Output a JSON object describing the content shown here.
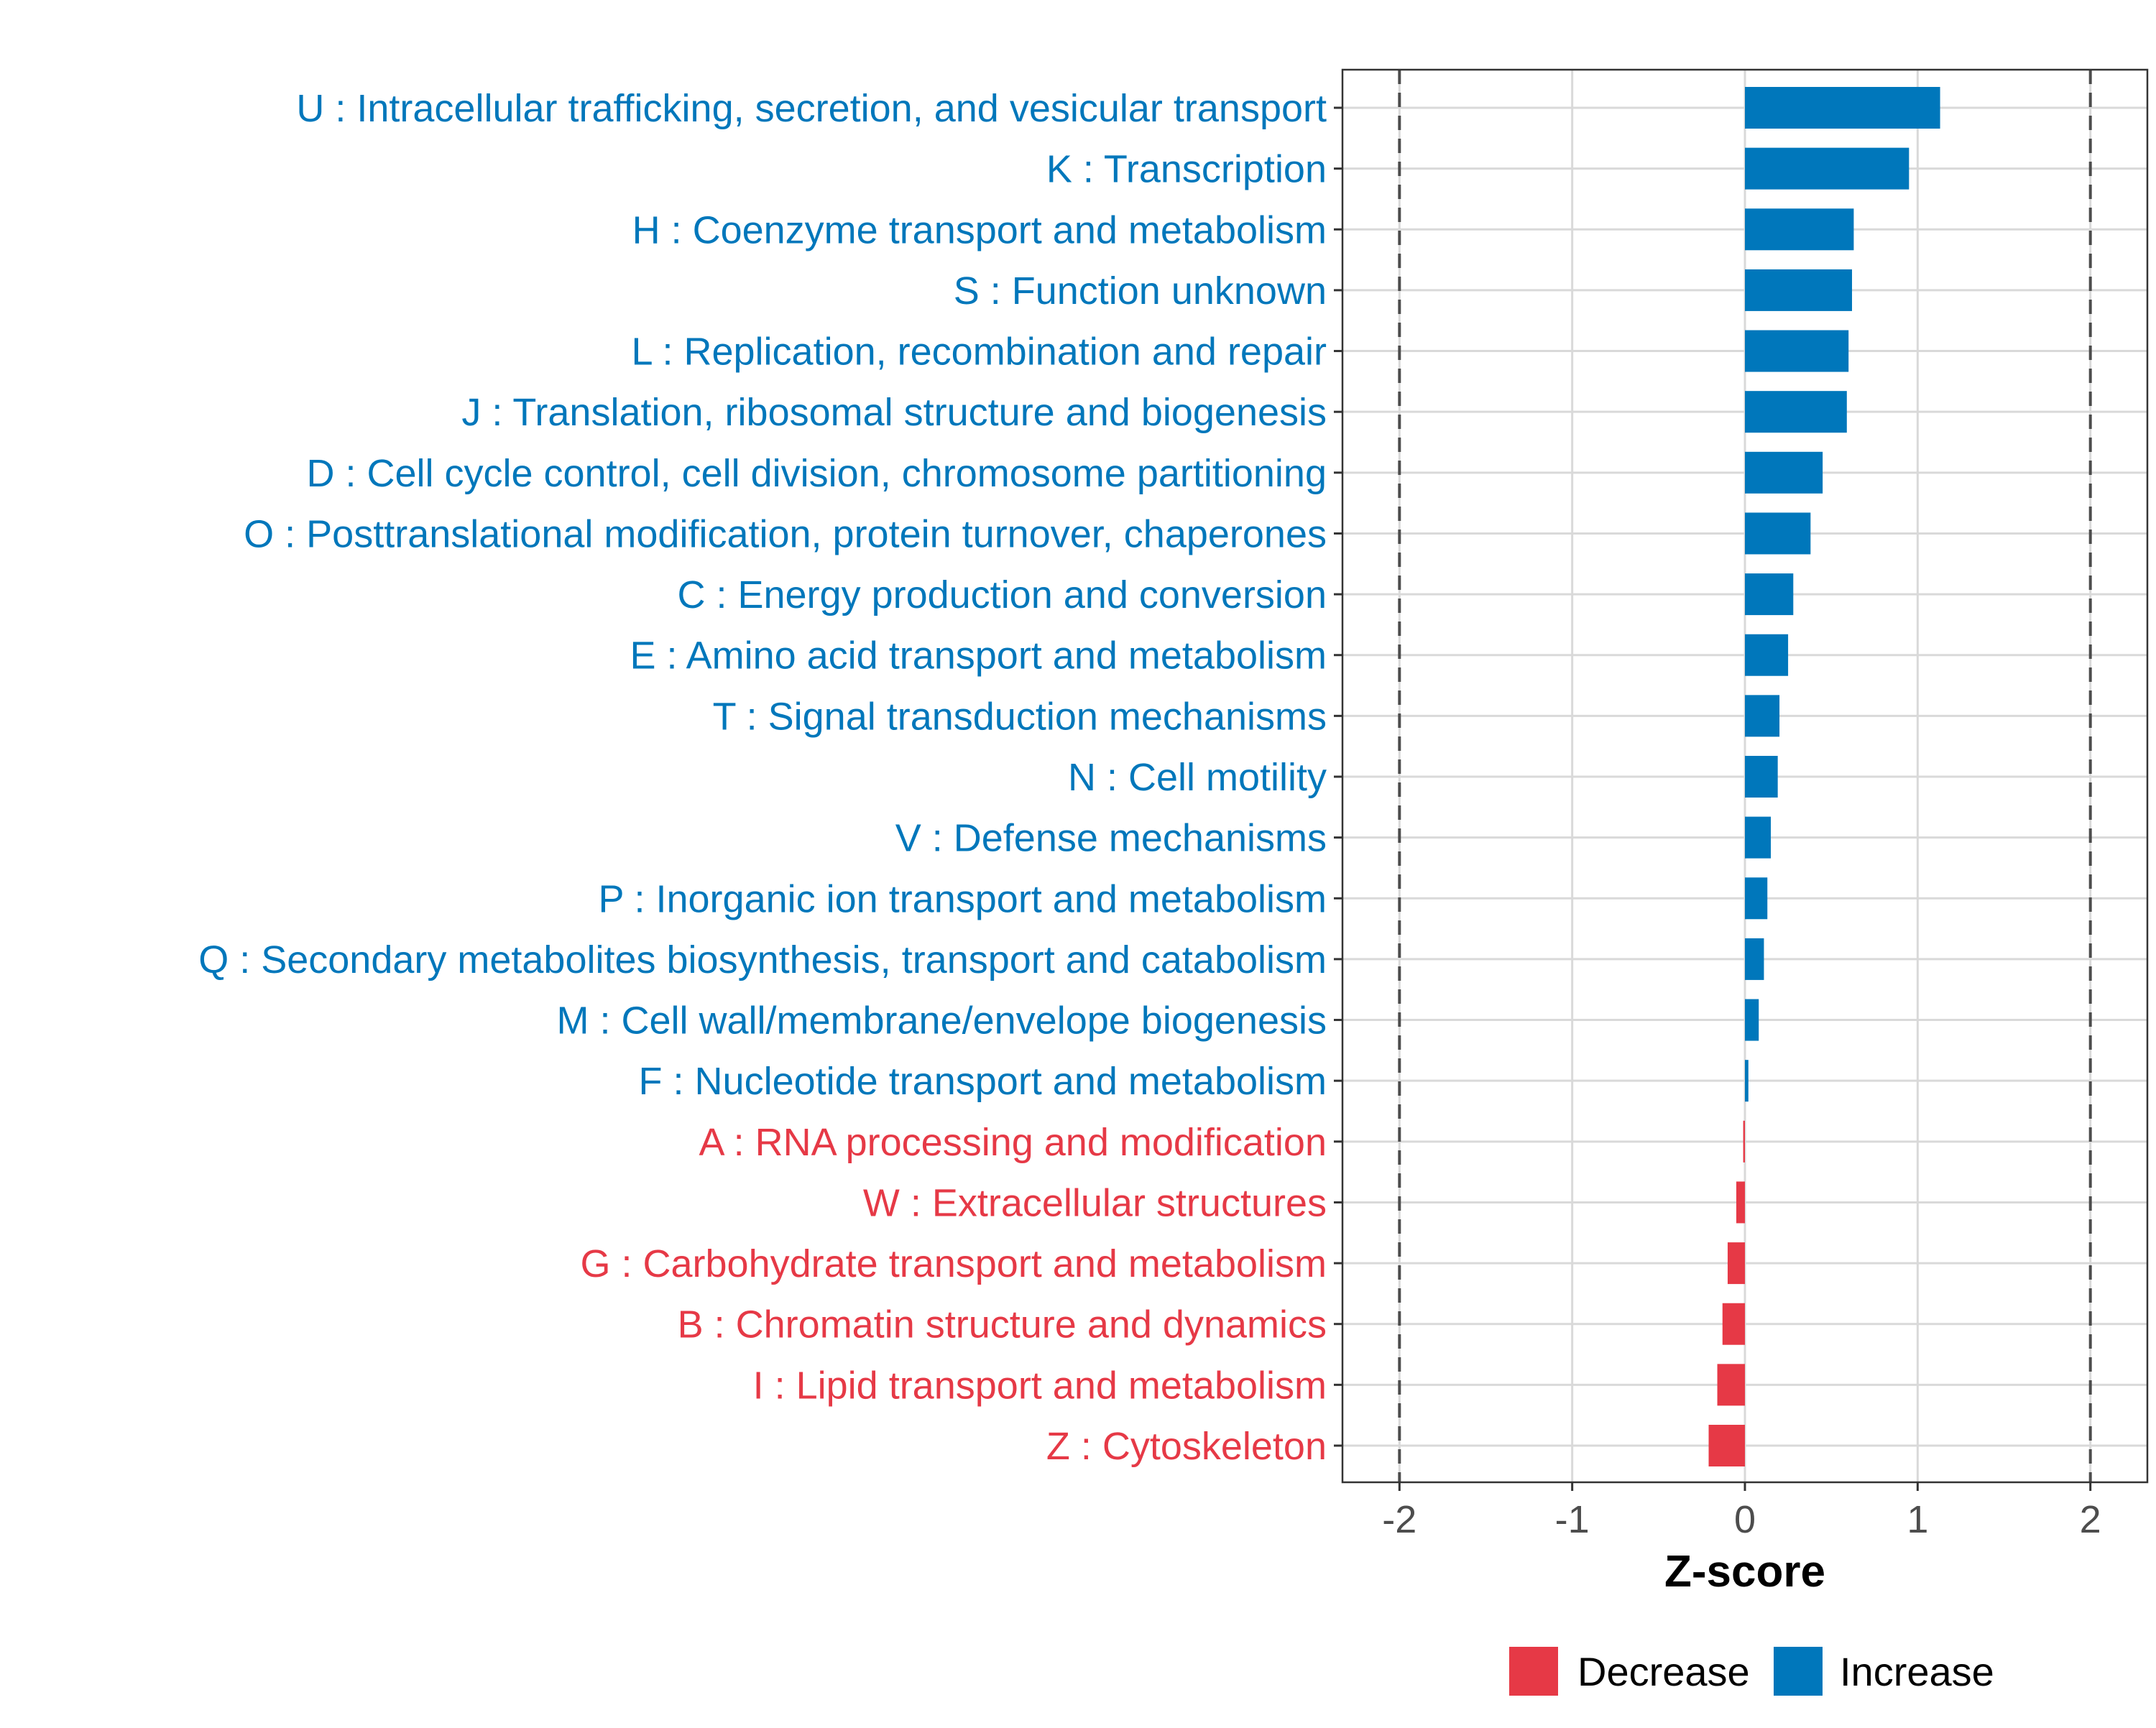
{
  "colors": {
    "increase": "#0077BB",
    "decrease": "#E63946",
    "grid": "#D9D9D9",
    "axis_text": "#4D4D4D",
    "panel_border": "#333333",
    "threshold_line": "#4D4D4D"
  },
  "chart_data": {
    "type": "bar",
    "orientation": "horizontal",
    "xlabel": "Z-score",
    "ylabel": "",
    "xlim": [
      -2.33,
      2.33
    ],
    "x_ticks": [
      -2,
      -1,
      0,
      1,
      2
    ],
    "x_tick_labels": [
      "-2",
      "-1",
      "0",
      "1",
      "2"
    ],
    "threshold_lines": [
      -2,
      2
    ],
    "grid": true,
    "legend": {
      "placement": "bottom",
      "items": [
        {
          "key": "decrease",
          "label": "Decrease"
        },
        {
          "key": "increase",
          "label": "Increase"
        }
      ]
    },
    "bars": [
      {
        "label": "U : Intracellular trafficking, secretion, and vesicular transport",
        "value": 1.13,
        "group": "increase"
      },
      {
        "label": "K : Transcription",
        "value": 0.95,
        "group": "increase"
      },
      {
        "label": "H : Coenzyme transport and metabolism",
        "value": 0.63,
        "group": "increase"
      },
      {
        "label": "S : Function unknown",
        "value": 0.62,
        "group": "increase"
      },
      {
        "label": "L : Replication, recombination and repair",
        "value": 0.6,
        "group": "increase"
      },
      {
        "label": "J : Translation, ribosomal structure and biogenesis",
        "value": 0.59,
        "group": "increase"
      },
      {
        "label": "D : Cell cycle control, cell division, chromosome partitioning",
        "value": 0.45,
        "group": "increase"
      },
      {
        "label": "O : Posttranslational modification, protein turnover, chaperones",
        "value": 0.38,
        "group": "increase"
      },
      {
        "label": "C : Energy production and conversion",
        "value": 0.28,
        "group": "increase"
      },
      {
        "label": "E : Amino acid transport and metabolism",
        "value": 0.25,
        "group": "increase"
      },
      {
        "label": "T : Signal transduction mechanisms",
        "value": 0.2,
        "group": "increase"
      },
      {
        "label": "N : Cell motility",
        "value": 0.19,
        "group": "increase"
      },
      {
        "label": "V : Defense mechanisms",
        "value": 0.15,
        "group": "increase"
      },
      {
        "label": "P : Inorganic ion transport and metabolism",
        "value": 0.13,
        "group": "increase"
      },
      {
        "label": "Q : Secondary metabolites biosynthesis, transport and catabolism",
        "value": 0.11,
        "group": "increase"
      },
      {
        "label": "M : Cell wall/membrane/envelope biogenesis",
        "value": 0.08,
        "group": "increase"
      },
      {
        "label": "F : Nucleotide transport and metabolism",
        "value": 0.02,
        "group": "increase"
      },
      {
        "label": "A : RNA processing and modification",
        "value": -0.01,
        "group": "decrease"
      },
      {
        "label": "W : Extracellular structures",
        "value": -0.05,
        "group": "decrease"
      },
      {
        "label": "G : Carbohydrate transport and metabolism",
        "value": -0.1,
        "group": "decrease"
      },
      {
        "label": "B : Chromatin structure and dynamics",
        "value": -0.13,
        "group": "decrease"
      },
      {
        "label": "I : Lipid transport and metabolism",
        "value": -0.16,
        "group": "decrease"
      },
      {
        "label": "Z : Cytoskeleton",
        "value": -0.21,
        "group": "decrease"
      }
    ]
  }
}
